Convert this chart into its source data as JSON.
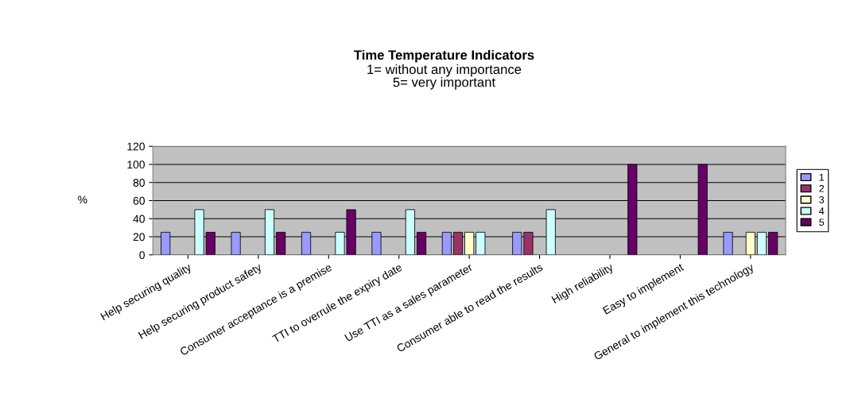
{
  "chart_data": {
    "type": "bar",
    "title": "Time Temperature Indicators",
    "subtitle": "1= without any importance\n5= very important",
    "ylabel": "%",
    "categories": [
      "Help securing quality",
      "Help securing product safety",
      "Consumer acceptance is a premise",
      "TTI to overrule the expiry date",
      "Use TTI as a sales parameter",
      "Consumer able to read the results",
      "High reliability",
      "Easy to implement",
      "General to implement this technology"
    ],
    "series": [
      {
        "name": "1",
        "color": "#9999ff",
        "values": [
          25,
          25,
          25,
          25,
          25,
          25,
          null,
          null,
          25
        ]
      },
      {
        "name": "2",
        "color": "#993366",
        "values": [
          null,
          null,
          null,
          null,
          25,
          25,
          null,
          null,
          null
        ]
      },
      {
        "name": "3",
        "color": "#ffffcc",
        "values": [
          null,
          null,
          null,
          null,
          25,
          null,
          null,
          null,
          25
        ]
      },
      {
        "name": "4",
        "color": "#ccffff",
        "values": [
          50,
          50,
          25,
          50,
          25,
          50,
          null,
          null,
          25
        ]
      },
      {
        "name": "5",
        "color": "#660066",
        "values": [
          25,
          25,
          50,
          25,
          null,
          null,
          100,
          100,
          25
        ]
      }
    ],
    "ylim": [
      0,
      120
    ],
    "yticks": [
      0,
      20,
      40,
      60,
      80,
      100,
      120
    ],
    "grid": "y",
    "legend": "right"
  }
}
